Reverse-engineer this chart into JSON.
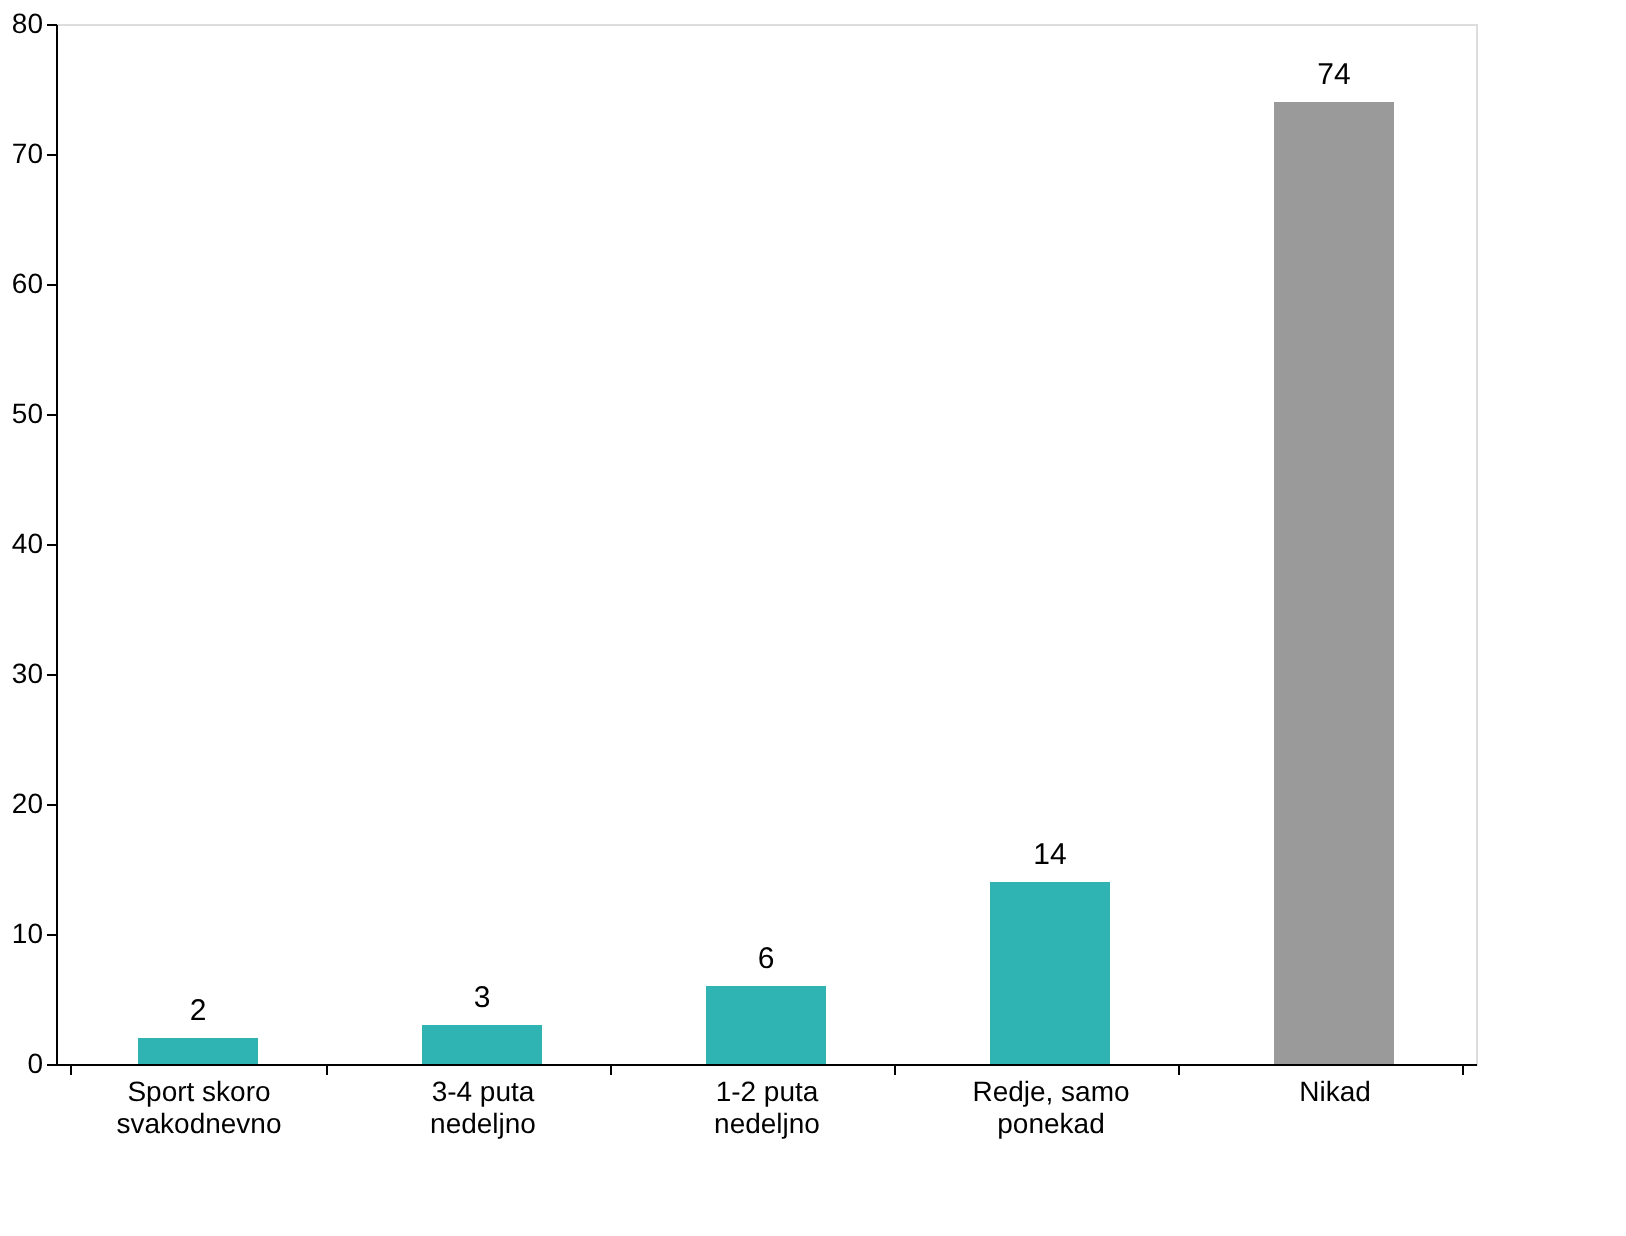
{
  "chart_data": {
    "type": "bar",
    "categories": [
      "Sport skoro svakodnevno",
      "3-4 puta nedeljno",
      "1-2 puta nedeljno",
      "Redje, samo ponekad",
      "Nikad"
    ],
    "values": [
      2,
      3,
      6,
      14,
      74
    ],
    "colors": [
      "#2fb3b3",
      "#2fb3b3",
      "#2fb3b3",
      "#2fb3b3",
      "#9a9a9a"
    ],
    "ylim": [
      0,
      80
    ],
    "yticks": [
      0,
      10,
      20,
      30,
      40,
      50,
      60,
      70,
      80
    ],
    "data_labels": true,
    "grid": false
  }
}
